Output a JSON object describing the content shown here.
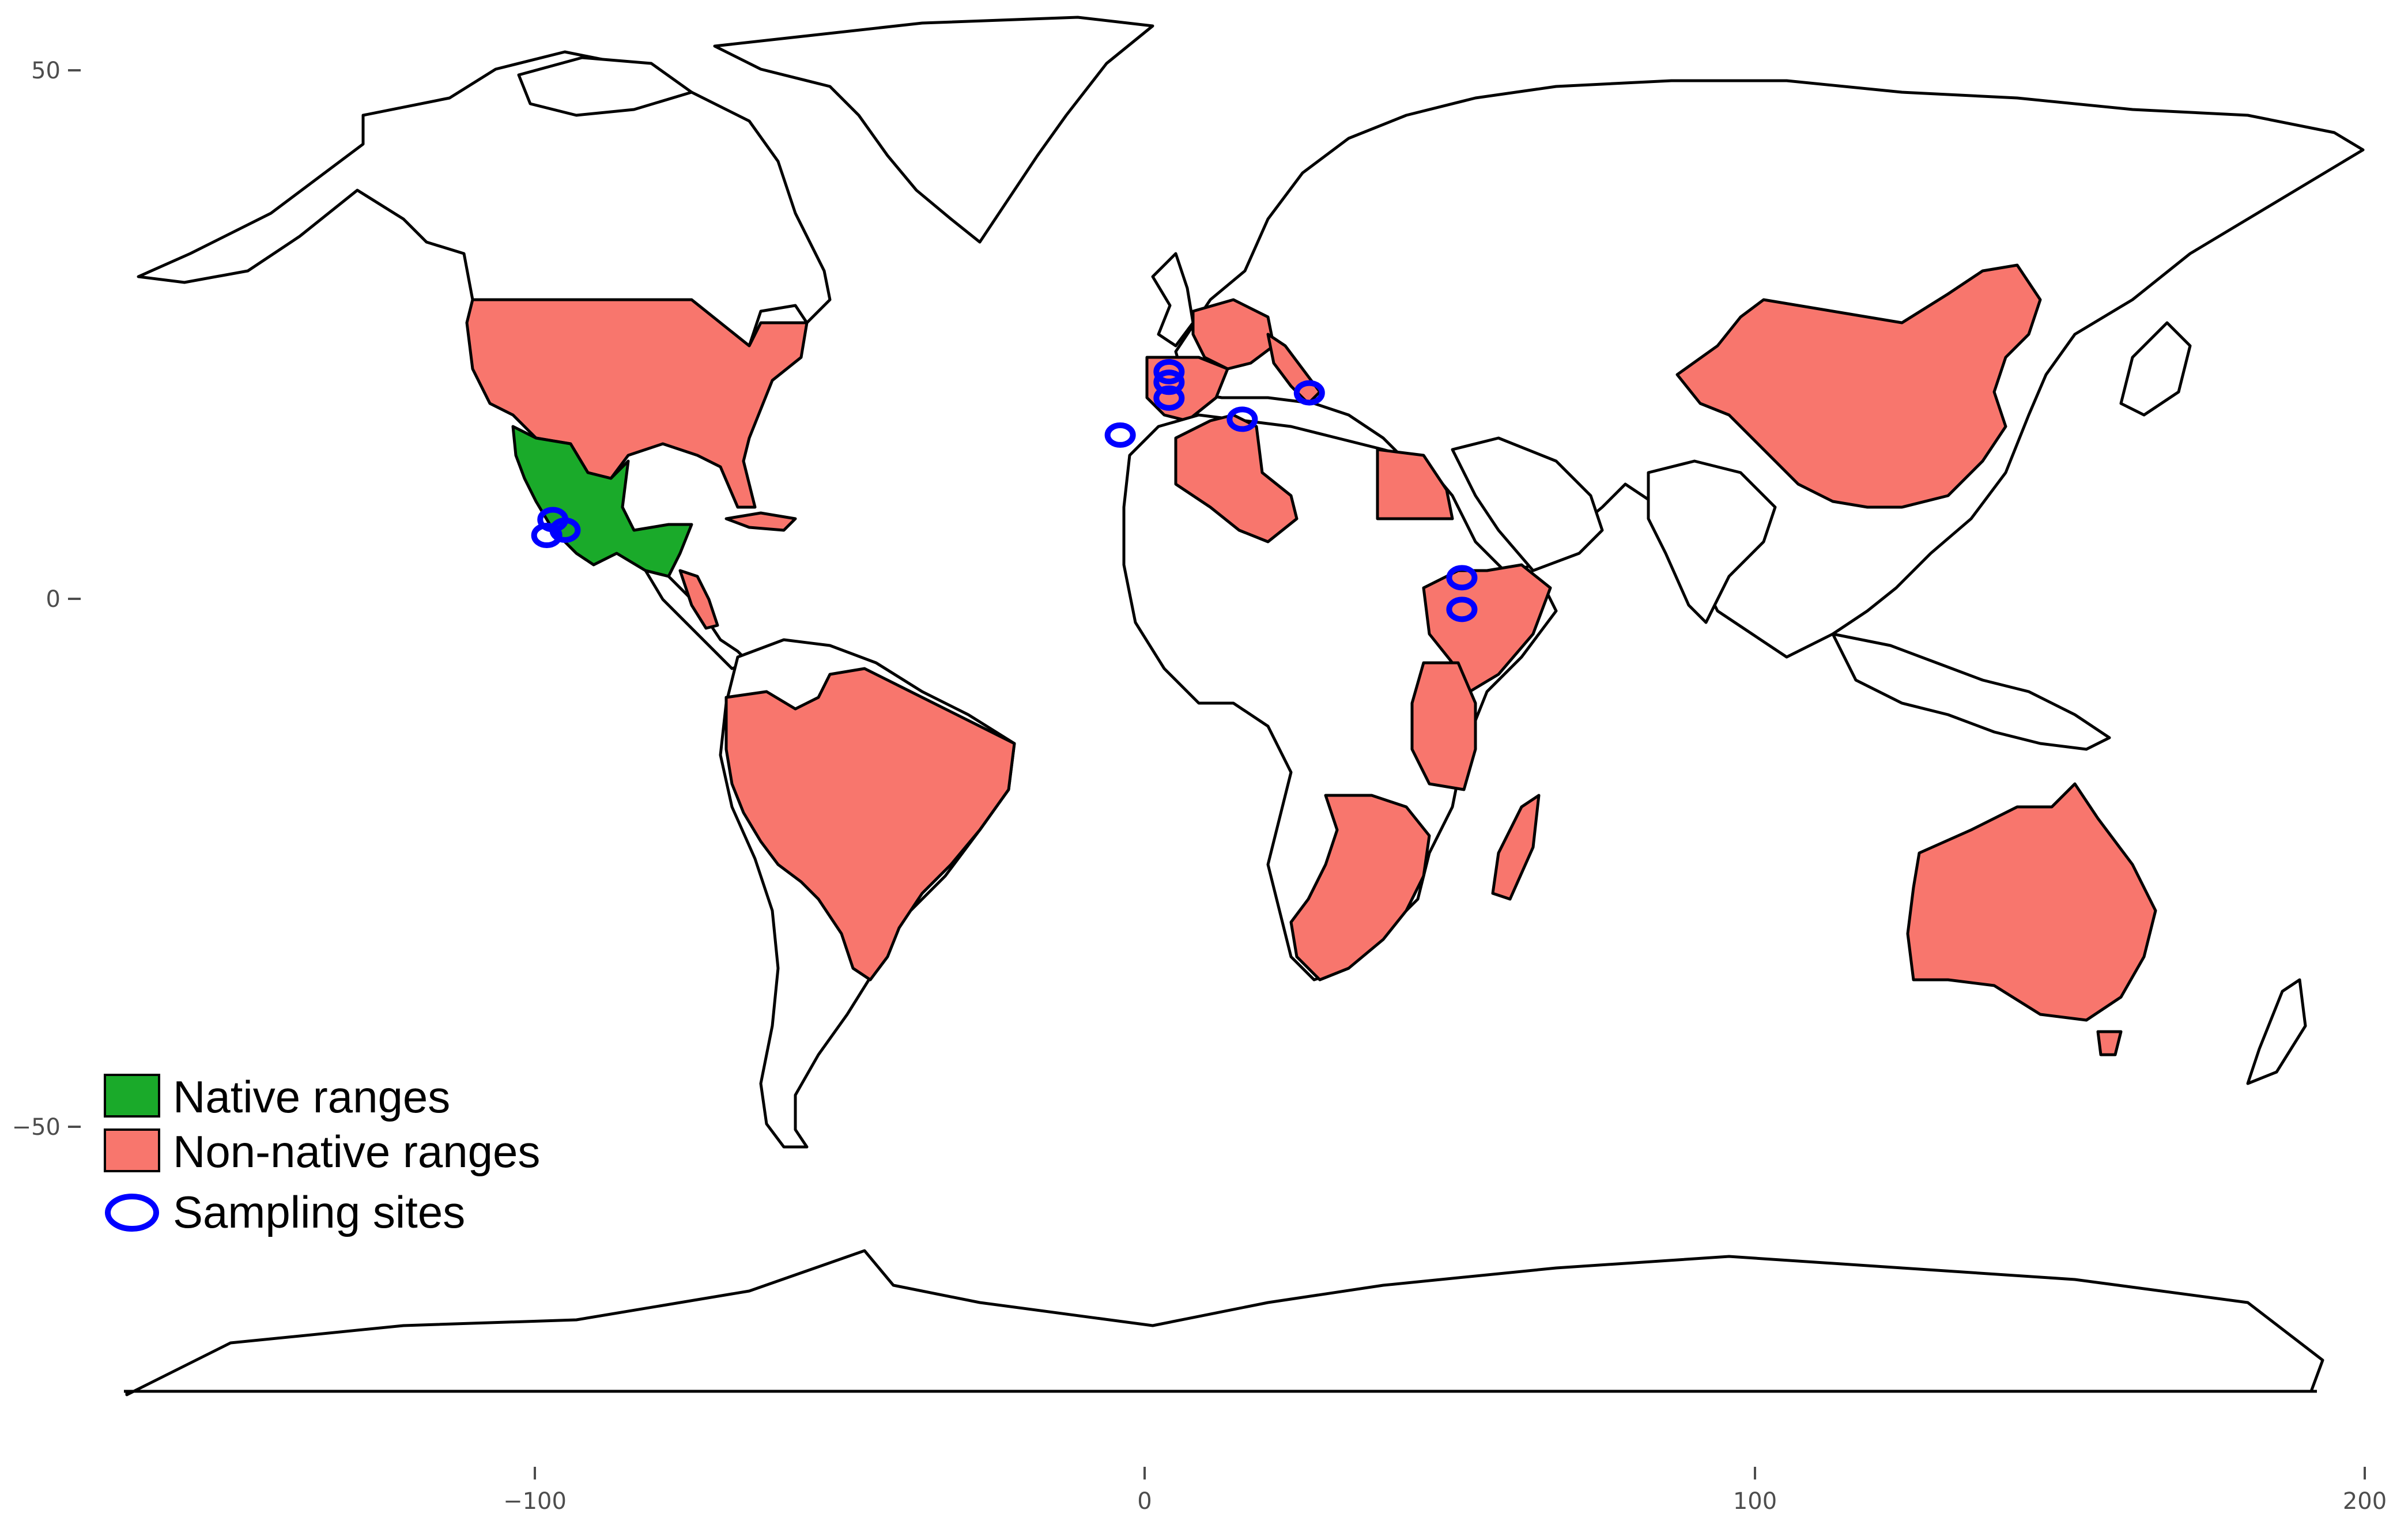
{
  "axes": {
    "x_ticks": [
      {
        "value": -100,
        "label": "−100"
      },
      {
        "value": 0,
        "label": "0"
      },
      {
        "value": 100,
        "label": "100"
      },
      {
        "value": 200,
        "label": "200"
      }
    ],
    "y_ticks": [
      {
        "value": 50,
        "label": "50"
      },
      {
        "value": 0,
        "label": "0"
      },
      {
        "value": -50,
        "label": "−50"
      }
    ]
  },
  "legend": {
    "native": "Native ranges",
    "nonnative": "Non-native ranges",
    "sites": "Sampling sites"
  },
  "colors": {
    "native": "#1aaa2a",
    "nonnative": "#f8766d",
    "sites": "#0000ff",
    "border": "#000000"
  },
  "sampling_sites": [
    {
      "lon": -97,
      "lat": 7.5
    },
    {
      "lon": -95,
      "lat": 6.5
    },
    {
      "lon": -98,
      "lat": 6
    },
    {
      "lon": -4,
      "lat": 15.5
    },
    {
      "lon": 4,
      "lat": 21.5
    },
    {
      "lon": 4,
      "lat": 20.5
    },
    {
      "lon": 4,
      "lat": 19
    },
    {
      "lon": 16,
      "lat": 17
    },
    {
      "lon": 27,
      "lat": 19.5
    },
    {
      "lon": 52,
      "lat": 2
    },
    {
      "lon": 52,
      "lat": -1
    }
  ]
}
